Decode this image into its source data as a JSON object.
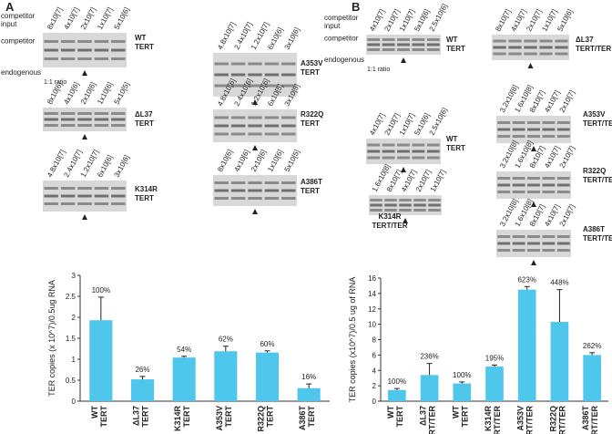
{
  "panel_a": {
    "letter": "A",
    "side_labels": {
      "input": [
        "competitor",
        "input"
      ],
      "competitor": "competitor",
      "endogenous": "endogenous",
      "ratio": "1:1 ratio"
    },
    "gels": [
      {
        "lanes": [
          "8x10[7]",
          "4x10[7]",
          "2x10[7]",
          "1x10[7]",
          "5x10[6]"
        ],
        "label": [
          "WT",
          "TERT"
        ]
      },
      {
        "lanes": [
          "4.8x10[7]",
          "2.4x10[7]",
          "1.2x10[7]",
          "6x10[6]",
          "3x10[6]"
        ],
        "label": [
          "A353V",
          "TERT"
        ]
      },
      {
        "lanes": [
          "8x10[6]",
          "4x10[6]",
          "2x10[6]",
          "1x10[6]",
          "5x10[5]"
        ],
        "label": [
          "ΔL37",
          "TERT"
        ]
      },
      {
        "lanes": [
          "4.8x10[6]",
          "2.4x10[6]",
          "1.2x10[6]",
          "6x10[5]",
          "3x10[5]"
        ],
        "label": [
          "R322Q",
          "TERT"
        ]
      },
      {
        "lanes": [
          "4.8x10[7]",
          "2.4x10[7]",
          "1.2x10[7]",
          "6x10[6]",
          "3x10[6]"
        ],
        "label": [
          "K314R",
          "TERT"
        ]
      },
      {
        "lanes": [
          "8x10[6]",
          "4x10[6]",
          "2x10[6]",
          "1x10[6]",
          "5x10[5]"
        ],
        "label": [
          "A386T",
          "TERT"
        ]
      }
    ]
  },
  "panel_b": {
    "letter": "B",
    "side_labels": {
      "input": [
        "competitor",
        "input"
      ],
      "competitor": "competitor",
      "endogenous": "endogenous",
      "ratio": "1:1 ratio"
    },
    "gels": [
      {
        "lanes": [
          "4x10[7]",
          "2x10[7]",
          "1x10[7]",
          "5x10[6]",
          "2.5x10[6]"
        ],
        "label": [
          "WT",
          "TERT"
        ]
      },
      {
        "lanes": [
          "8x10[7]",
          "4x10[7]",
          "2x10[7]",
          "1x10[7]",
          "5x10[6]"
        ],
        "label": [
          "ΔL37",
          "TERT/TER"
        ]
      },
      {
        "lanes": [
          "4x10[7]",
          "2x10[7]",
          "1x10[7]",
          "5x10[6]",
          "2.5x10[6]"
        ],
        "label": [
          "WT",
          "TERT"
        ]
      },
      {
        "lanes": [
          "1.6x10[8]",
          "8x10[7]",
          "4x10[7]",
          "2x10[7]",
          "1x10[7]"
        ],
        "label": [
          "K314R",
          "TERT/TER"
        ]
      },
      {
        "lanes": [
          "3.2x10[8]",
          "1.6x10[8]",
          "8x10[7]",
          "4x10[7]",
          "2x10[7]"
        ],
        "label": [
          "A353V",
          "TERT/TER"
        ]
      },
      {
        "lanes": [
          "3.2x10[8]",
          "1.6x10[8]",
          "8x10[7]",
          "4x10[7]",
          "2x10[7]"
        ],
        "label": [
          "R322Q",
          "TERT/TER"
        ]
      },
      {
        "lanes": [
          "3.2x10[8]",
          "1.6x10[8]",
          "8x10[7]",
          "4x10[7]",
          "2x10[7]"
        ],
        "label": [
          "A386T",
          "TERT/TER"
        ]
      }
    ]
  },
  "chart_data": [
    {
      "type": "bar",
      "ylabel": "TER copies (x 10^7)/0.5ug RNA",
      "color": "#4fc6ec",
      "categories": [
        [
          "WT",
          "TERT"
        ],
        [
          "ΔL37",
          "TERT"
        ],
        [
          "K314R",
          "TERT"
        ],
        [
          "A353V",
          "TERT"
        ],
        [
          "R322Q",
          "TERT"
        ],
        [
          "A386T",
          "TERT"
        ]
      ],
      "values": [
        1.93,
        0.52,
        1.04,
        1.19,
        1.16,
        0.31
      ],
      "errors": [
        0.55,
        0.07,
        0.03,
        0.12,
        0.04,
        0.1
      ],
      "annotations": [
        "100%",
        "26%",
        "54%",
        "62%",
        "60%",
        "16%"
      ],
      "ylim": [
        0,
        3
      ],
      "yticks": [
        0,
        0.5,
        1,
        1.5,
        2,
        2.5,
        3
      ]
    },
    {
      "type": "bar",
      "ylabel": "TER copies (x10^7)/0.5 ug of RNA",
      "color": "#4fc6ec",
      "categories": [
        [
          "WT",
          "TERT"
        ],
        [
          "ΔL37",
          "TERT/TER"
        ],
        [
          "WT",
          "TERT"
        ],
        [
          "K314R",
          "TERT/TER"
        ],
        [
          "A353V",
          "TERT/TER"
        ],
        [
          "R322Q",
          "TERT/TER"
        ],
        [
          "A386T",
          "TERT/TER"
        ]
      ],
      "values": [
        1.45,
        3.4,
        2.3,
        4.5,
        14.5,
        10.3,
        6.0
      ],
      "errors": [
        0.2,
        1.5,
        0.2,
        0.2,
        0.4,
        4.2,
        0.3
      ],
      "annotations": [
        "100%",
        "236%",
        "100%",
        "195%",
        "623%",
        "448%",
        "262%"
      ],
      "ylim": [
        0,
        16
      ],
      "yticks": [
        0,
        2,
        4,
        6,
        8,
        10,
        12,
        14,
        16
      ]
    }
  ]
}
